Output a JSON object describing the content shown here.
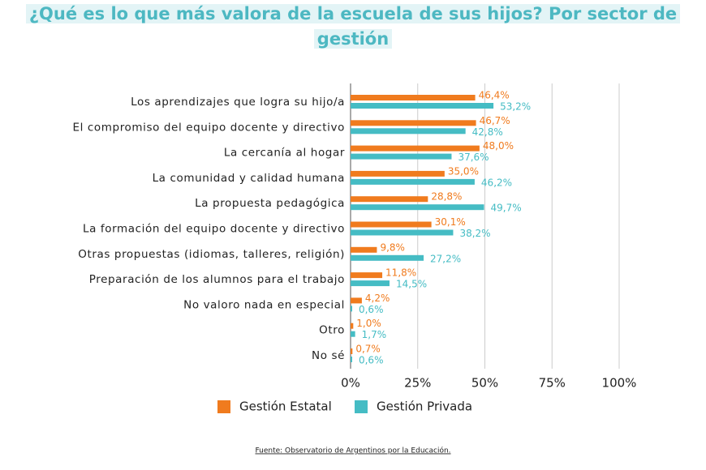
{
  "chart_data": {
    "type": "barh",
    "title": "¿Qué es lo que más valora de la escuela de sus hijos? Por sector de gestión",
    "categories": [
      "Los aprendizajes que logra su hijo/a",
      "El compromiso del equipo docente y directivo",
      "La cercanía al hogar",
      "La comunidad y calidad humana",
      "La propuesta pedagógica",
      "La formación del equipo docente y directivo",
      "Otras propuestas (idiomas, talleres, religión)",
      "Preparación de los alumnos para el trabajo",
      "No valoro nada en especial",
      "Otro",
      "No sé"
    ],
    "series": [
      {
        "name": "Gestión Estatal",
        "color": "#f07b1e",
        "values": [
          46.4,
          46.7,
          48.0,
          35.0,
          28.8,
          30.1,
          9.8,
          11.8,
          4.2,
          1.0,
          0.7
        ],
        "value_labels": [
          "46,4%",
          "46,7%",
          "48,0%",
          "35,0%",
          "28,8%",
          "30,1%",
          "9,8%",
          "11,8%",
          "4,2%",
          "1,0%",
          "0,7%"
        ]
      },
      {
        "name": "Gestión Privada",
        "color": "#45bcc4",
        "values": [
          53.2,
          42.8,
          37.6,
          46.2,
          49.7,
          38.2,
          27.2,
          14.5,
          0.6,
          1.7,
          0.6
        ],
        "value_labels": [
          "53,2%",
          "42,8%",
          "37,6%",
          "46,2%",
          "49,7%",
          "38,2%",
          "27,2%",
          "14,5%",
          "0,6%",
          "1,7%",
          "0,6%"
        ]
      }
    ],
    "xlim": [
      0,
      100
    ],
    "xticks": [
      {
        "value": 0,
        "label": "0%"
      },
      {
        "value": 25,
        "label": "25%"
      },
      {
        "value": 50,
        "label": "50%"
      },
      {
        "value": 75,
        "label": "75%"
      },
      {
        "value": 100,
        "label": "100%"
      }
    ],
    "grid": true,
    "legend": "bottom",
    "source": "Fuente: Observatorio de Argentinos por la Educación."
  }
}
